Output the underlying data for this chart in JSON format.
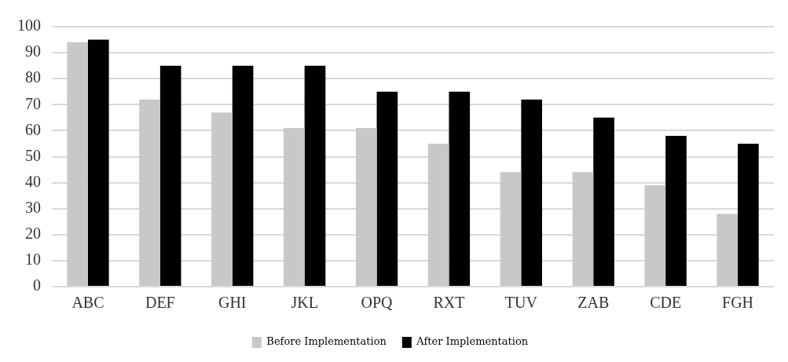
{
  "chart_data": {
    "type": "bar",
    "categories": [
      "ABC",
      "DEF",
      "GHI",
      "JKL",
      "OPQ",
      "RXT",
      "TUV",
      "ZAB",
      "CDE",
      "FGH"
    ],
    "series": [
      {
        "name": "Before Implementation",
        "color": "#c8c8c8",
        "values": [
          94,
          72,
          67,
          61,
          61,
          55,
          44,
          44,
          39,
          28
        ]
      },
      {
        "name": "After Implementation",
        "color": "#000000",
        "values": [
          95,
          85,
          85,
          85,
          75,
          75,
          72,
          65,
          58,
          55
        ]
      }
    ],
    "ylim": [
      0,
      100
    ],
    "yticks": [
      0,
      10,
      20,
      30,
      40,
      50,
      60,
      70,
      80,
      90,
      100
    ],
    "grid": "y",
    "legend": "bottom"
  }
}
